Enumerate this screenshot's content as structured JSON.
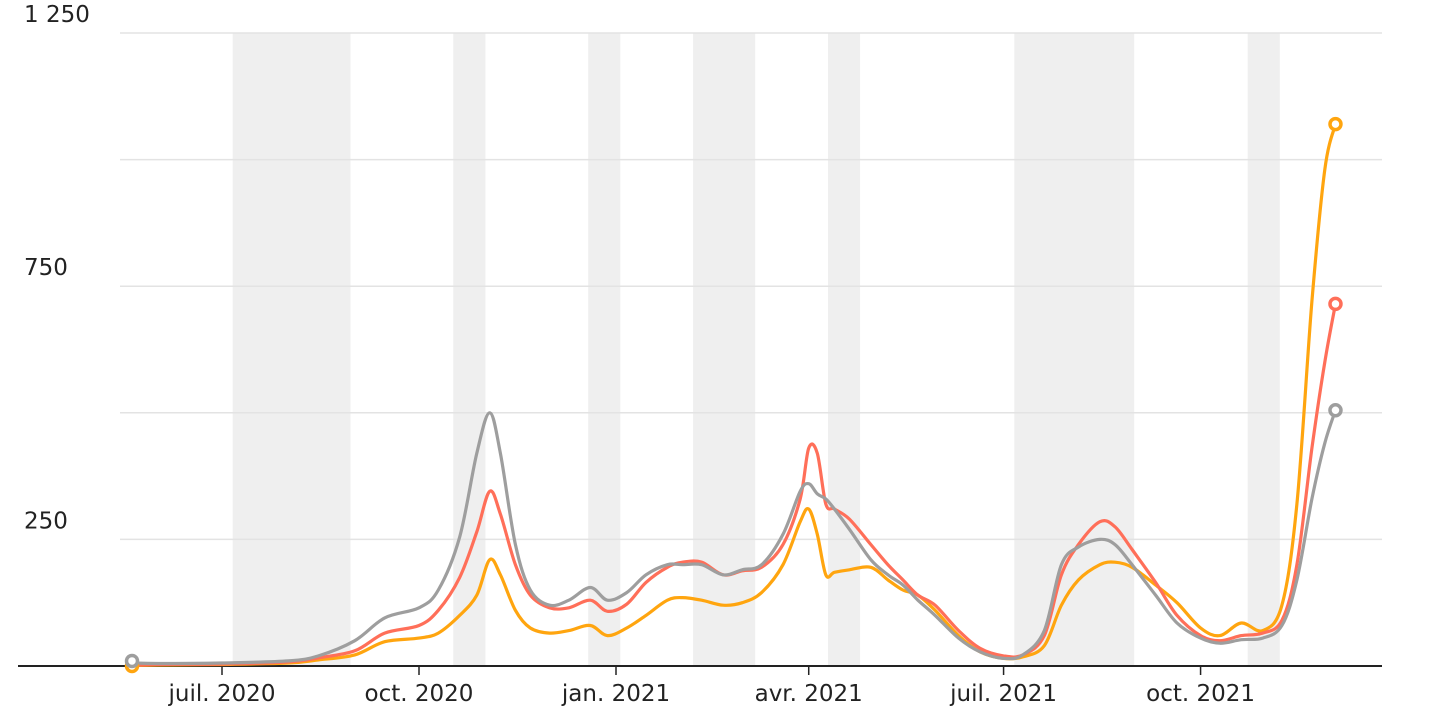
{
  "chart_data": {
    "type": "line",
    "x_axis": {
      "type": "date",
      "range": [
        "2020-04-15",
        "2021-12-31"
      ],
      "ticks": [
        {
          "date": "2020-07-01",
          "label": "juil. 2020"
        },
        {
          "date": "2020-10-01",
          "label": "oct. 2020"
        },
        {
          "date": "2021-01-01",
          "label": "jan. 2021"
        },
        {
          "date": "2021-04-01",
          "label": "avr. 2021"
        },
        {
          "date": "2021-07-01",
          "label": "juil. 2021"
        },
        {
          "date": "2021-10-01",
          "label": "oct. 2021"
        }
      ]
    },
    "y_axis": {
      "range": [
        0,
        1250
      ],
      "gridlines": [
        0,
        250,
        500,
        750,
        1000,
        1250
      ],
      "labels": [
        {
          "value": 250,
          "label": "250"
        },
        {
          "value": 750,
          "label": "750"
        },
        {
          "value": 1250,
          "label": "1 250"
        }
      ]
    },
    "shaded_periods": [
      [
        "2020-07-06",
        "2020-08-30"
      ],
      [
        "2020-10-17",
        "2020-11-01"
      ],
      [
        "2020-12-19",
        "2021-01-03"
      ],
      [
        "2021-02-06",
        "2021-03-07"
      ],
      [
        "2021-04-10",
        "2021-04-25"
      ],
      [
        "2021-07-06",
        "2021-08-31"
      ],
      [
        "2021-10-23",
        "2021-11-07"
      ]
    ],
    "series": [
      {
        "color": "#ff6f59",
        "points": [
          [
            "2020-06-01",
            3
          ],
          [
            "2020-07-01",
            4
          ],
          [
            "2020-08-01",
            8
          ],
          [
            "2020-08-15",
            16
          ],
          [
            "2020-09-01",
            30
          ],
          [
            "2020-09-15",
            65
          ],
          [
            "2020-10-01",
            80
          ],
          [
            "2020-10-10",
            110
          ],
          [
            "2020-10-20",
            175
          ],
          [
            "2020-10-28",
            265
          ],
          [
            "2020-11-03",
            345
          ],
          [
            "2020-11-08",
            300
          ],
          [
            "2020-11-15",
            200
          ],
          [
            "2020-11-22",
            140
          ],
          [
            "2020-12-01",
            115
          ],
          [
            "2020-12-10",
            115
          ],
          [
            "2020-12-20",
            130
          ],
          [
            "2020-12-28",
            108
          ],
          [
            "2021-01-06",
            122
          ],
          [
            "2021-01-15",
            165
          ],
          [
            "2021-01-25",
            195
          ],
          [
            "2021-02-01",
            205
          ],
          [
            "2021-02-10",
            205
          ],
          [
            "2021-02-20",
            180
          ],
          [
            "2021-03-01",
            188
          ],
          [
            "2021-03-10",
            195
          ],
          [
            "2021-03-20",
            240
          ],
          [
            "2021-03-28",
            330
          ],
          [
            "2021-04-01",
            430
          ],
          [
            "2021-04-05",
            420
          ],
          [
            "2021-04-09",
            320
          ],
          [
            "2021-04-13",
            310
          ],
          [
            "2021-04-20",
            290
          ],
          [
            "2021-04-30",
            240
          ],
          [
            "2021-05-08",
            200
          ],
          [
            "2021-05-15",
            170
          ],
          [
            "2021-05-22",
            140
          ],
          [
            "2021-05-30",
            120
          ],
          [
            "2021-06-10",
            70
          ],
          [
            "2021-06-20",
            35
          ],
          [
            "2021-07-01",
            20
          ],
          [
            "2021-07-10",
            22
          ],
          [
            "2021-07-20",
            60
          ],
          [
            "2021-07-28",
            180
          ],
          [
            "2021-08-05",
            240
          ],
          [
            "2021-08-15",
            285
          ],
          [
            "2021-08-22",
            275
          ],
          [
            "2021-08-30",
            230
          ],
          [
            "2021-09-10",
            165
          ],
          [
            "2021-09-20",
            100
          ],
          [
            "2021-10-01",
            60
          ],
          [
            "2021-10-10",
            50
          ],
          [
            "2021-10-20",
            60
          ],
          [
            "2021-10-30",
            65
          ],
          [
            "2021-11-08",
            90
          ],
          [
            "2021-11-15",
            200
          ],
          [
            "2021-11-22",
            430
          ],
          [
            "2021-11-28",
            600
          ],
          [
            "2021-12-03",
            715
          ]
        ]
      },
      {
        "color": "#ffa50f",
        "points": [
          [
            "2020-06-01",
            2
          ],
          [
            "2020-07-01",
            3
          ],
          [
            "2020-08-01",
            6
          ],
          [
            "2020-08-15",
            12
          ],
          [
            "2020-09-01",
            22
          ],
          [
            "2020-09-15",
            48
          ],
          [
            "2020-10-01",
            55
          ],
          [
            "2020-10-10",
            65
          ],
          [
            "2020-10-20",
            100
          ],
          [
            "2020-10-28",
            140
          ],
          [
            "2020-11-03",
            210
          ],
          [
            "2020-11-08",
            180
          ],
          [
            "2020-11-15",
            110
          ],
          [
            "2020-11-22",
            75
          ],
          [
            "2020-12-01",
            65
          ],
          [
            "2020-12-10",
            70
          ],
          [
            "2020-12-20",
            80
          ],
          [
            "2020-12-28",
            60
          ],
          [
            "2021-01-06",
            75
          ],
          [
            "2021-01-15",
            100
          ],
          [
            "2021-01-25",
            130
          ],
          [
            "2021-02-01",
            135
          ],
          [
            "2021-02-10",
            130
          ],
          [
            "2021-02-20",
            120
          ],
          [
            "2021-03-01",
            125
          ],
          [
            "2021-03-10",
            145
          ],
          [
            "2021-03-20",
            200
          ],
          [
            "2021-03-28",
            285
          ],
          [
            "2021-04-01",
            310
          ],
          [
            "2021-04-05",
            260
          ],
          [
            "2021-04-09",
            180
          ],
          [
            "2021-04-13",
            185
          ],
          [
            "2021-04-20",
            190
          ],
          [
            "2021-04-30",
            195
          ],
          [
            "2021-05-08",
            170
          ],
          [
            "2021-05-15",
            150
          ],
          [
            "2021-05-22",
            140
          ],
          [
            "2021-05-30",
            110
          ],
          [
            "2021-06-10",
            60
          ],
          [
            "2021-06-20",
            28
          ],
          [
            "2021-07-01",
            15
          ],
          [
            "2021-07-10",
            18
          ],
          [
            "2021-07-20",
            40
          ],
          [
            "2021-07-28",
            120
          ],
          [
            "2021-08-05",
            170
          ],
          [
            "2021-08-15",
            200
          ],
          [
            "2021-08-22",
            205
          ],
          [
            "2021-08-30",
            195
          ],
          [
            "2021-09-10",
            160
          ],
          [
            "2021-09-20",
            125
          ],
          [
            "2021-10-01",
            75
          ],
          [
            "2021-10-10",
            60
          ],
          [
            "2021-10-20",
            85
          ],
          [
            "2021-10-30",
            70
          ],
          [
            "2021-11-08",
            120
          ],
          [
            "2021-11-15",
            320
          ],
          [
            "2021-11-22",
            720
          ],
          [
            "2021-11-28",
            980
          ],
          [
            "2021-12-03",
            1070
          ]
        ]
      },
      {
        "color": "#9e9e9e",
        "points": [
          [
            "2020-06-01",
            5
          ],
          [
            "2020-07-01",
            6
          ],
          [
            "2020-08-01",
            10
          ],
          [
            "2020-08-15",
            20
          ],
          [
            "2020-09-01",
            50
          ],
          [
            "2020-09-15",
            95
          ],
          [
            "2020-10-01",
            115
          ],
          [
            "2020-10-10",
            150
          ],
          [
            "2020-10-20",
            255
          ],
          [
            "2020-10-28",
            420
          ],
          [
            "2020-11-03",
            500
          ],
          [
            "2020-11-08",
            420
          ],
          [
            "2020-11-15",
            240
          ],
          [
            "2020-11-22",
            150
          ],
          [
            "2020-12-01",
            120
          ],
          [
            "2020-12-10",
            130
          ],
          [
            "2020-12-20",
            155
          ],
          [
            "2020-12-28",
            130
          ],
          [
            "2021-01-06",
            145
          ],
          [
            "2021-01-15",
            180
          ],
          [
            "2021-01-25",
            200
          ],
          [
            "2021-02-01",
            200
          ],
          [
            "2021-02-10",
            200
          ],
          [
            "2021-02-20",
            180
          ],
          [
            "2021-03-01",
            190
          ],
          [
            "2021-03-10",
            200
          ],
          [
            "2021-03-20",
            260
          ],
          [
            "2021-03-28",
            345
          ],
          [
            "2021-04-01",
            360
          ],
          [
            "2021-04-05",
            340
          ],
          [
            "2021-04-09",
            330
          ],
          [
            "2021-04-13",
            310
          ],
          [
            "2021-04-20",
            270
          ],
          [
            "2021-04-30",
            210
          ],
          [
            "2021-05-08",
            180
          ],
          [
            "2021-05-15",
            160
          ],
          [
            "2021-05-22",
            130
          ],
          [
            "2021-05-30",
            100
          ],
          [
            "2021-06-10",
            55
          ],
          [
            "2021-06-20",
            28
          ],
          [
            "2021-07-01",
            15
          ],
          [
            "2021-07-10",
            22
          ],
          [
            "2021-07-20",
            70
          ],
          [
            "2021-07-28",
            200
          ],
          [
            "2021-08-05",
            235
          ],
          [
            "2021-08-15",
            250
          ],
          [
            "2021-08-22",
            240
          ],
          [
            "2021-08-30",
            200
          ],
          [
            "2021-09-10",
            140
          ],
          [
            "2021-09-20",
            85
          ],
          [
            "2021-10-01",
            55
          ],
          [
            "2021-10-10",
            45
          ],
          [
            "2021-10-20",
            52
          ],
          [
            "2021-10-30",
            55
          ],
          [
            "2021-11-08",
            80
          ],
          [
            "2021-11-15",
            170
          ],
          [
            "2021-11-22",
            330
          ],
          [
            "2021-11-28",
            440
          ],
          [
            "2021-12-03",
            505
          ]
        ]
      }
    ],
    "start_markers": [
      {
        "color": "#ffa50f",
        "date": "2020-04-25",
        "value": 0
      },
      {
        "color": "#9e9e9e",
        "date": "2020-04-25",
        "value": 6
      }
    ],
    "grid": true,
    "legend": "none"
  }
}
